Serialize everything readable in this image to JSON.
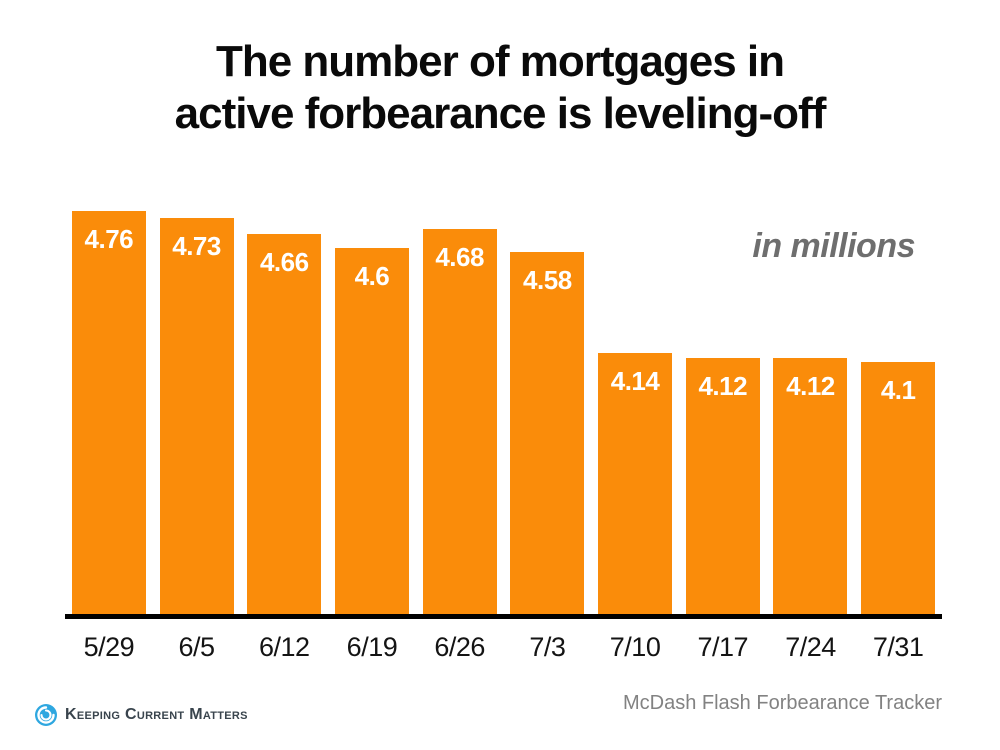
{
  "slide": {
    "title_lines": [
      "The number of mortgages in",
      "active forbearance is leveling-off"
    ],
    "unit_note": "in millions",
    "source_note": "McDash Flash Forbearance Tracker",
    "logo_text": "Keeping Current Matters"
  },
  "chart_data": {
    "type": "bar",
    "title": "The number of mortgages in active forbearance is leveling-off",
    "subtitle": "in millions",
    "categories": [
      "5/29",
      "6/5",
      "6/12",
      "6/19",
      "6/26",
      "7/3",
      "7/10",
      "7/17",
      "7/24",
      "7/31"
    ],
    "values": [
      4.76,
      4.73,
      4.66,
      4.6,
      4.68,
      4.58,
      4.14,
      4.12,
      4.12,
      4.1
    ],
    "value_labels": [
      "4.76",
      "4.73",
      "4.66",
      "4.6",
      "4.68",
      "4.58",
      "4.14",
      "4.12",
      "4.12",
      "4.1"
    ],
    "xlabel": "",
    "ylabel": "",
    "ylim": [
      3.0,
      4.9
    ],
    "grid": false,
    "legend": "none",
    "bar_color": "#FA8C0A",
    "value_label_color": "#FFFFFF",
    "axis_line_color": "#000000",
    "source": "McDash Flash Forbearance Tracker"
  },
  "colors": {
    "background": "#FFFFFF",
    "title_text": "#0A0A0A",
    "tick_text": "#141414",
    "unit_note_gray": "#6E6E6E",
    "source_gray": "#828282",
    "logo_blue": "#2EA7E0",
    "logo_text": "#39444D"
  }
}
